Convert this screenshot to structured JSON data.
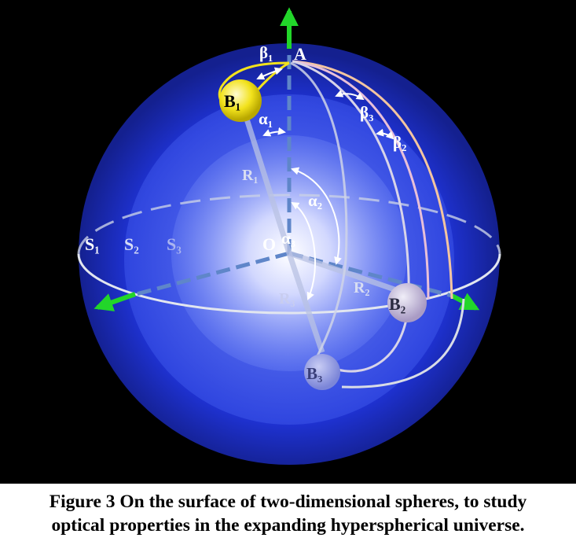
{
  "figure": {
    "labels": {
      "A": "A",
      "O": "O",
      "S1": "S₁",
      "S2": "S₂",
      "S3": "S₃",
      "B1": "B₁",
      "B2": "B₂",
      "B3": "B₃",
      "R1": "R₁",
      "R2": "R₂",
      "R3": "R₃",
      "alpha1": "α₁",
      "alpha2": "α₂",
      "alpha3": "α₃",
      "beta1": "β₁",
      "beta2": "β₂",
      "beta3": "β₃"
    },
    "colors": {
      "background": "#000000",
      "sphere_outer": "#1a2fd0",
      "sphere_glow": "#ffffff",
      "axis_arrow": "#22d62a",
      "ring": "#d8dde8",
      "ball_yellow": "#f2e21c",
      "geodesic_outer": "#f3c5a0"
    }
  },
  "caption": {
    "line1": "Figure 3 On the surface of two-dimensional spheres, to study",
    "line2": "optical properties in the expanding hyperspherical universe."
  }
}
